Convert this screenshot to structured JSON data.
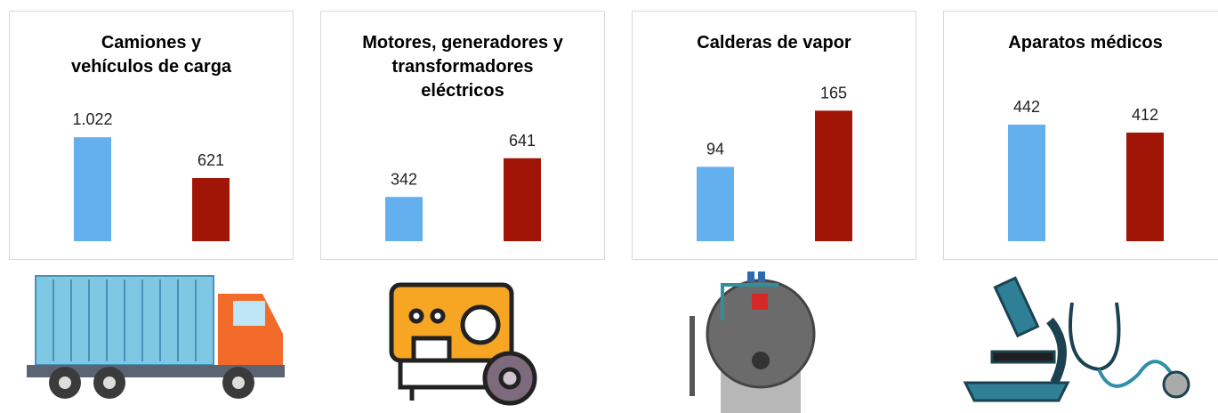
{
  "chart_data": [
    {
      "type": "bar",
      "title": "Camiones y vehículos de carga",
      "values": [
        1022,
        621
      ],
      "value_labels": [
        "1.022",
        "621"
      ],
      "colors": [
        "#64b0ef",
        "#a11507"
      ],
      "ylim": [
        0,
        1400
      ]
    },
    {
      "type": "bar",
      "title": "Motores, generadores y transformadores eléctricos",
      "values": [
        342,
        641
      ],
      "colors": [
        "#64b0ef",
        "#a11507"
      ],
      "ylim": [
        0,
        1100
      ]
    },
    {
      "type": "bar",
      "title": "Calderas de vapor",
      "values": [
        94,
        165
      ],
      "colors": [
        "#64b0ef",
        "#a11507"
      ],
      "ylim": [
        0,
        180
      ]
    },
    {
      "type": "bar",
      "title": "Aparatos médicos",
      "values": [
        442,
        412
      ],
      "colors": [
        "#64b0ef",
        "#a11507"
      ],
      "ylim": [
        0,
        540
      ]
    }
  ]
}
